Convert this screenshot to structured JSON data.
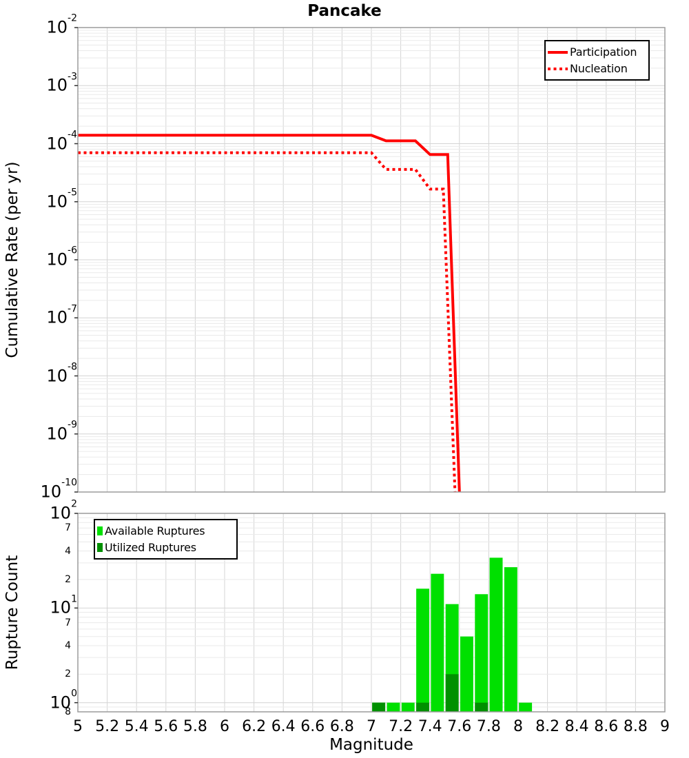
{
  "colors": {
    "background": "#ffffff",
    "frame": "#9b9b9b",
    "grid_major": "#d4d4d4",
    "grid_minor": "#eaeaea",
    "tick_mark": "#333333"
  },
  "chart_data": [
    {
      "type": "line",
      "title": "Pancake",
      "ylabel": "Cumulative Rate (per yr)",
      "xlim": [
        5,
        9
      ],
      "ylim": [
        1e-10,
        0.01
      ],
      "grid": true,
      "legend_position": "top-right",
      "y_tick_exponents": [
        -2,
        -3,
        -4,
        -5,
        -6,
        -7,
        -8,
        -9,
        -10
      ],
      "series": [
        {
          "name": "Participation",
          "style": "solid",
          "color": "#ff0000",
          "points": [
            [
              5.0,
              0.00014
            ],
            [
              7.0,
              0.00014
            ],
            [
              7.1,
              0.000112
            ],
            [
              7.3,
              0.000112
            ],
            [
              7.4,
              6.5e-05
            ],
            [
              7.52,
              6.5e-05
            ],
            [
              7.6,
              1e-10
            ]
          ]
        },
        {
          "name": "Nucleation",
          "style": "dotted",
          "color": "#ff0000",
          "points": [
            [
              5.0,
              7e-05
            ],
            [
              7.0,
              7e-05
            ],
            [
              7.1,
              3.6e-05
            ],
            [
              7.3,
              3.6e-05
            ],
            [
              7.4,
              1.65e-05
            ],
            [
              7.49,
              1.65e-05
            ],
            [
              7.57,
              1e-10
            ]
          ]
        }
      ]
    },
    {
      "type": "bar",
      "ylabel": "Rupture Count",
      "xlabel": "Magnitude",
      "xlim": [
        5,
        9
      ],
      "ylim": [
        0.8,
        100
      ],
      "bar_width": 0.1,
      "grid": true,
      "legend_position": "top-left",
      "x_ticks": [
        "5",
        "5.2",
        "5.4",
        "5.6",
        "5.8",
        "6",
        "6.2",
        "6.4",
        "6.6",
        "6.8",
        "7",
        "7.2",
        "7.4",
        "7.6",
        "7.8",
        "8",
        "8.2",
        "8.4",
        "8.6",
        "8.8",
        "9"
      ],
      "y_ticks_major_exponents": [
        2,
        1,
        0
      ],
      "y_ticks_minor": [
        {
          "value": 70,
          "label": "7"
        },
        {
          "value": 40,
          "label": "4"
        },
        {
          "value": 20,
          "label": "2"
        },
        {
          "value": 7,
          "label": "7"
        },
        {
          "value": 4,
          "label": "4"
        },
        {
          "value": 2,
          "label": "2"
        },
        {
          "value": 0.8,
          "label": "8"
        }
      ],
      "series": [
        {
          "name": "Available Ruptures",
          "color": "#00e000",
          "x": [
            7.05,
            7.15,
            7.25,
            7.35,
            7.45,
            7.55,
            7.65,
            7.75,
            7.85,
            7.95,
            8.05
          ],
          "counts": [
            1,
            1,
            1,
            16,
            23,
            11,
            5,
            14,
            34,
            27,
            1
          ]
        },
        {
          "name": "Utilized Ruptures",
          "color": "#009000",
          "x": [
            7.05,
            7.35,
            7.55,
            7.75
          ],
          "counts": [
            1,
            1,
            2,
            1
          ]
        }
      ]
    }
  ]
}
